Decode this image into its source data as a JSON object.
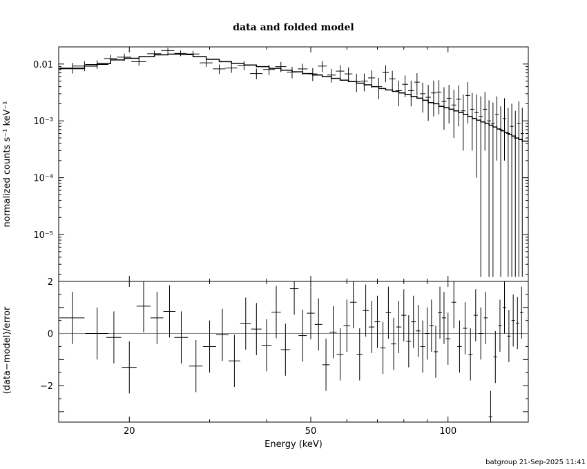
{
  "chart_data": [
    {
      "type": "scatter",
      "title": "data and folded model",
      "xlabel": "",
      "ylabel": "normalized counts s⁻¹ keV⁻¹",
      "xscale": "log",
      "yscale": "log",
      "xlim": [
        14,
        150
      ],
      "ylim": [
        1.5e-06,
        0.02
      ],
      "yticks": [
        {
          "value": 1e-05,
          "label": "10⁻⁵"
        },
        {
          "value": 0.0001,
          "label": "10⁻⁴"
        },
        {
          "value": 0.001,
          "label": "10⁻³"
        },
        {
          "value": 0.01,
          "label": "0.01"
        }
      ],
      "series": [
        {
          "kind": "data-with-errors",
          "x": [
            15.0,
            15.95,
            17.0,
            18.2,
            19.5,
            21.0,
            22.7,
            24.3,
            25.9,
            27.6,
            29.5,
            31.5,
            33.5,
            35.7,
            38.0,
            40.5,
            43.0,
            45.5,
            48.0,
            50.5,
            53.0,
            55.5,
            58.0,
            60.5,
            63.0,
            65.5,
            68.0,
            70.5,
            73.0,
            75.5,
            78.0,
            80.5,
            83.0,
            85.5,
            88.0,
            90.5,
            93.0,
            95.5,
            98.0,
            100.5,
            103.0,
            105.5,
            108.0,
            110.5,
            113.0,
            115.5,
            118.0,
            120.5,
            123.0,
            125.5,
            128.0,
            130.5,
            133.0,
            135.5,
            138.0,
            140.5,
            143.0,
            145.5
          ],
          "y": [
            0.0085,
            0.0092,
            0.0098,
            0.0125,
            0.0132,
            0.011,
            0.0152,
            0.0172,
            0.0154,
            0.015,
            0.0105,
            0.0082,
            0.0085,
            0.0095,
            0.0068,
            0.008,
            0.009,
            0.0072,
            0.0082,
            0.0067,
            0.0092,
            0.0064,
            0.0075,
            0.0067,
            0.0049,
            0.005,
            0.0057,
            0.004,
            0.0071,
            0.0055,
            0.0034,
            0.0044,
            0.0034,
            0.0048,
            0.003,
            0.0026,
            0.0031,
            0.0032,
            0.0022,
            0.0025,
            0.0019,
            0.0024,
            0.0015,
            0.0028,
            0.0016,
            0.0014,
            0.0012,
            0.0016,
            0.001,
            0.0009,
            0.0013,
            0.0007,
            0.0011,
            0.0006,
            0.0008,
            0.0005,
            0.0009,
            0.0006
          ],
          "xerr": [
            0.9,
            0.95,
            1.0,
            0.6,
            0.7,
            0.8,
            0.8,
            0.8,
            0.8,
            0.9,
            0.95,
            1.0,
            1.0,
            1.1,
            1.2,
            1.2,
            1.2,
            1.2,
            1.2,
            1.2,
            1.2,
            1.2,
            1.2,
            1.2,
            1.2,
            1.2,
            1.2,
            1.2,
            1.2,
            1.2,
            1.2,
            1.2,
            1.2,
            1.2,
            1.2,
            1.2,
            1.2,
            1.2,
            1.2,
            1.2,
            1.2,
            1.2,
            1.2,
            1.2,
            1.2,
            1.2,
            1.2,
            1.2,
            1.2,
            1.2,
            1.2,
            1.2,
            1.2,
            1.2,
            1.2,
            1.2,
            1.2,
            1.2
          ],
          "ylow": [
            0.0068,
            0.0075,
            0.0082,
            0.0108,
            0.0114,
            0.0093,
            0.0134,
            0.0153,
            0.0137,
            0.0132,
            0.0089,
            0.0067,
            0.007,
            0.0078,
            0.0054,
            0.0064,
            0.0072,
            0.0056,
            0.0064,
            0.005,
            0.0072,
            0.0047,
            0.0056,
            0.0048,
            0.0032,
            0.0033,
            0.0038,
            0.0024,
            0.0048,
            0.0035,
            0.0018,
            0.0026,
            0.0018,
            0.0028,
            0.0014,
            0.001,
            0.0012,
            0.0013,
            0.0007,
            0.0009,
            0.0005,
            0.0008,
            0.0003,
            0.0009,
            0.0003,
            0.0001,
            1.8e-06,
            0.0003,
            1.8e-06,
            1.8e-06,
            0.0002,
            1.8e-06,
            0.0002,
            1.8e-06,
            1.8e-06,
            1.8e-06,
            1.8e-06,
            1.8e-06
          ],
          "yhigh": [
            0.0105,
            0.0112,
            0.0116,
            0.0145,
            0.0152,
            0.0128,
            0.0172,
            0.0193,
            0.0173,
            0.017,
            0.0122,
            0.0098,
            0.0102,
            0.0113,
            0.0083,
            0.0097,
            0.0109,
            0.0089,
            0.0101,
            0.0085,
            0.0113,
            0.0082,
            0.0095,
            0.0087,
            0.0067,
            0.0068,
            0.0077,
            0.0057,
            0.0095,
            0.0076,
            0.0051,
            0.0063,
            0.0051,
            0.0069,
            0.0047,
            0.0043,
            0.0051,
            0.0052,
            0.0039,
            0.0043,
            0.0035,
            0.0042,
            0.0029,
            0.0048,
            0.0031,
            0.0029,
            0.0027,
            0.0032,
            0.0023,
            0.0021,
            0.0027,
            0.0018,
            0.0025,
            0.0017,
            0.002,
            0.0015,
            0.0022,
            0.0017
          ]
        },
        {
          "kind": "model-step",
          "edges": [
            14,
            15.95,
            17.0,
            18.2,
            19.5,
            21.0,
            22.7,
            24.3,
            25.9,
            27.6,
            29.5,
            31.5,
            33.5,
            35.7,
            38.0,
            40.5,
            43.0,
            45.5,
            48.0,
            50.5,
            53.0,
            55.5,
            58.0,
            60.5,
            63.0,
            65.5,
            68.0,
            70.5,
            73.0,
            75.5,
            78.0,
            80.5,
            83.0,
            85.5,
            88.0,
            90.5,
            93.0,
            95.5,
            98.0,
            100.5,
            103.0,
            105.5,
            108.0,
            110.5,
            113.0,
            115.5,
            118.0,
            120.5,
            123.0,
            125.5,
            128.0,
            130.5,
            133.0,
            135.5,
            138.0,
            140.5,
            143.0,
            145.5,
            150
          ],
          "values": [
            0.0083,
            0.0092,
            0.0102,
            0.0118,
            0.0126,
            0.0135,
            0.0145,
            0.0149,
            0.0146,
            0.0135,
            0.0121,
            0.011,
            0.0103,
            0.0096,
            0.009,
            0.0084,
            0.0078,
            0.0073,
            0.0068,
            0.0064,
            0.006,
            0.0056,
            0.0052,
            0.0049,
            0.0046,
            0.0043,
            0.004,
            0.0037,
            0.0035,
            0.0033,
            0.0031,
            0.0029,
            0.0027,
            0.0025,
            0.0023,
            0.0021,
            0.002,
            0.0018,
            0.0017,
            0.0016,
            0.0015,
            0.0014,
            0.0013,
            0.0012,
            0.0011,
            0.00103,
            0.00096,
            0.0009,
            0.00084,
            0.00078,
            0.00072,
            0.00067,
            0.00062,
            0.00058,
            0.00054,
            0.0005,
            0.00047,
            0.00044
          ]
        }
      ]
    },
    {
      "type": "scatter",
      "title": "",
      "xlabel": "Energy (keV)",
      "ylabel": "(data−model)/error",
      "xscale": "log",
      "xlim": [
        14,
        150
      ],
      "ylim": [
        -3.4,
        2.0
      ],
      "xticks": [
        {
          "value": 20,
          "label": "20"
        },
        {
          "value": 50,
          "label": "50"
        },
        {
          "value": 100,
          "label": "100"
        }
      ],
      "yticks": [
        {
          "value": -2,
          "label": "−2"
        },
        {
          "value": 0,
          "label": "0"
        },
        {
          "value": 2,
          "label": "2"
        }
      ],
      "reference_line": {
        "y": 0,
        "color": "#22cc22"
      },
      "series": [
        {
          "kind": "residuals",
          "x": [
            15.0,
            17.0,
            18.5,
            20.0,
            21.5,
            23.0,
            24.5,
            26.0,
            28.0,
            30.0,
            32.0,
            34.0,
            36.0,
            38.0,
            40.0,
            42.0,
            44.0,
            46.0,
            48.0,
            50.0,
            52.0,
            54.0,
            56.0,
            58.0,
            60.0,
            62.0,
            64.0,
            66.0,
            68.0,
            70.0,
            72.0,
            74.0,
            76.0,
            78.0,
            80.0,
            82.0,
            84.0,
            86.0,
            88.0,
            90.0,
            92.0,
            94.0,
            96.0,
            98.0,
            100.0,
            103.0,
            106.0,
            109.0,
            112.0,
            115.0,
            118.0,
            121.0,
            124.0,
            127.0,
            130.0,
            133.0,
            136.0,
            139.0,
            142.0,
            145.0
          ],
          "y": [
            0.6,
            0.0,
            -0.15,
            -1.3,
            1.05,
            0.6,
            0.85,
            -0.15,
            -1.25,
            -0.5,
            -0.05,
            -1.05,
            0.38,
            0.17,
            -0.45,
            0.82,
            -0.62,
            1.72,
            -0.08,
            0.78,
            0.35,
            -1.2,
            0.05,
            -0.8,
            0.3,
            1.2,
            -0.8,
            0.88,
            0.25,
            0.45,
            -0.55,
            0.8,
            -0.4,
            0.25,
            0.7,
            -0.3,
            0.45,
            0.1,
            -0.5,
            0.0,
            0.3,
            -0.7,
            0.8,
            0.6,
            -0.2,
            1.2,
            -0.5,
            0.2,
            -0.8,
            0.7,
            0.0,
            0.6,
            -3.2,
            -0.9,
            0.3,
            1.0,
            -0.1,
            0.5,
            0.4,
            0.8
          ],
          "xerr": [
            0.95,
            1.0,
            0.7,
            0.75,
            0.75,
            0.75,
            0.75,
            0.9,
            0.95,
            1.0,
            1.0,
            1.0,
            1.0,
            1.0,
            1.0,
            1.0,
            1.0,
            1.0,
            1.0,
            1.0,
            1.0,
            1.0,
            1.0,
            1.0,
            1.0,
            1.0,
            1.0,
            1.0,
            1.0,
            1.0,
            1.0,
            1.0,
            1.0,
            1.0,
            1.0,
            1.0,
            1.0,
            1.0,
            1.0,
            1.0,
            1.0,
            1.0,
            1.0,
            1.0,
            1.2,
            1.2,
            1.2,
            1.2,
            1.2,
            1.2,
            1.2,
            1.2,
            1.2,
            1.2,
            1.2,
            1.2,
            1.2,
            1.2,
            1.2,
            1.2
          ],
          "yerr": [
            1.0,
            1.0,
            1.0,
            1.0,
            1.0,
            1.0,
            1.0,
            1.0,
            1.0,
            1.0,
            1.0,
            1.0,
            1.0,
            1.0,
            1.0,
            1.0,
            1.0,
            1.0,
            1.0,
            1.0,
            1.0,
            1.0,
            1.0,
            1.0,
            1.0,
            1.0,
            1.0,
            1.0,
            1.0,
            1.0,
            1.0,
            1.0,
            1.0,
            1.0,
            1.0,
            1.0,
            1.0,
            1.0,
            1.0,
            1.0,
            1.0,
            1.0,
            1.0,
            1.0,
            1.0,
            1.0,
            1.0,
            1.0,
            1.0,
            1.0,
            1.0,
            1.0,
            1.0,
            1.0,
            1.0,
            1.0,
            1.0,
            1.0,
            1.0,
            1.0
          ]
        }
      ]
    }
  ],
  "footer": "batgroup 21-Sep-2025 11:41"
}
